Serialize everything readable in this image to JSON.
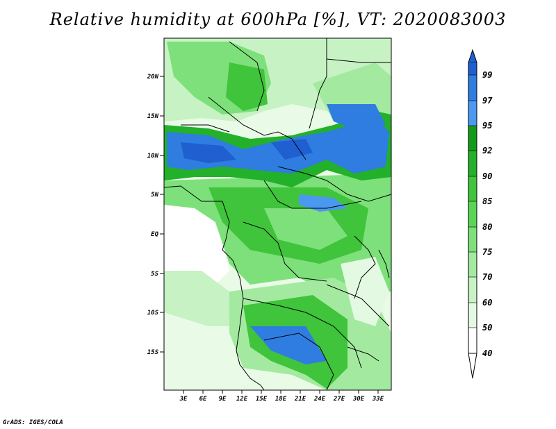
{
  "title": "Relative humidity at 600hPa [%], VT: 2020083003",
  "credit": "GrADS: IGES/COLA",
  "map": {
    "lat_ticks": [
      "20N",
      "15N",
      "10N",
      "5N",
      "EQ",
      "5S",
      "10S",
      "15S"
    ],
    "lon_ticks": [
      "3E",
      "6E",
      "9E",
      "12E",
      "15E",
      "18E",
      "21E",
      "24E",
      "27E",
      "30E",
      "33E"
    ]
  },
  "colorbar": {
    "labels": [
      "99",
      "97",
      "95",
      "92",
      "90",
      "85",
      "80",
      "75",
      "70",
      "60",
      "50",
      "40"
    ],
    "colors": [
      "#1f5fd0",
      "#2f7de0",
      "#4b98f0",
      "#129a1a",
      "#23b02a",
      "#3fc43c",
      "#5ad655",
      "#7de07a",
      "#a3eaa0",
      "#c7f2c4",
      "#e3f9e1",
      "#ffffff"
    ]
  },
  "chart_data": {
    "type": "heatmap",
    "title": "Relative humidity at 600hPa [%], VT: 2020083003",
    "x_ticks": [
      "3E",
      "6E",
      "9E",
      "12E",
      "15E",
      "18E",
      "21E",
      "24E",
      "27E",
      "30E",
      "33E"
    ],
    "y_ticks": [
      "20N",
      "15N",
      "10N",
      "5N",
      "EQ",
      "5S",
      "10S",
      "15S"
    ],
    "levels": [
      40,
      50,
      60,
      70,
      75,
      80,
      85,
      90,
      92,
      95,
      97,
      99
    ]
  }
}
